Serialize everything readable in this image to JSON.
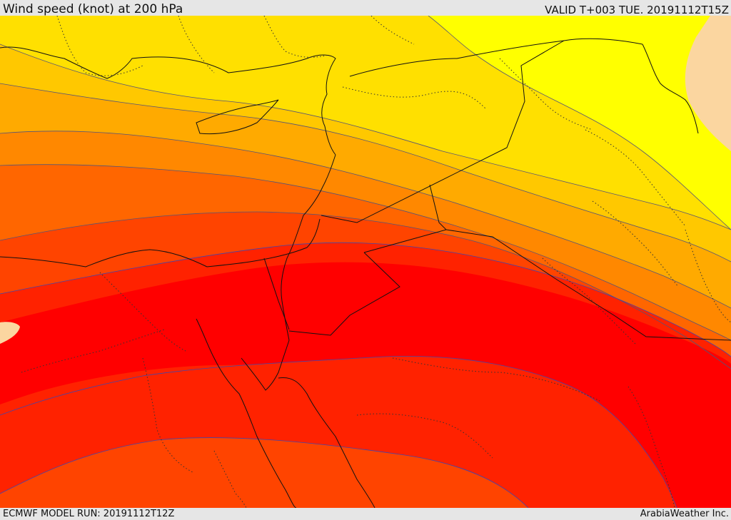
{
  "header": {
    "title": "Wind speed (knot) at 200 hPa",
    "valid": "VALID T+003 TUE. 20191112T15Z"
  },
  "footer": {
    "model_run": "ECMWF MODEL RUN: 20191112T12Z",
    "credit": "ArabiaWeather Inc."
  },
  "legend_colors": {
    "band_1": "#fbd6a0",
    "band_2": "#ffff00",
    "band_3": "#ffe000",
    "band_4": "#ffc800",
    "band_5": "#ffaa00",
    "band_6": "#ff8800",
    "band_7": "#ff6600",
    "band_8": "#ff4400",
    "band_9": "#ff2200",
    "band_10": "#ff0000"
  }
}
